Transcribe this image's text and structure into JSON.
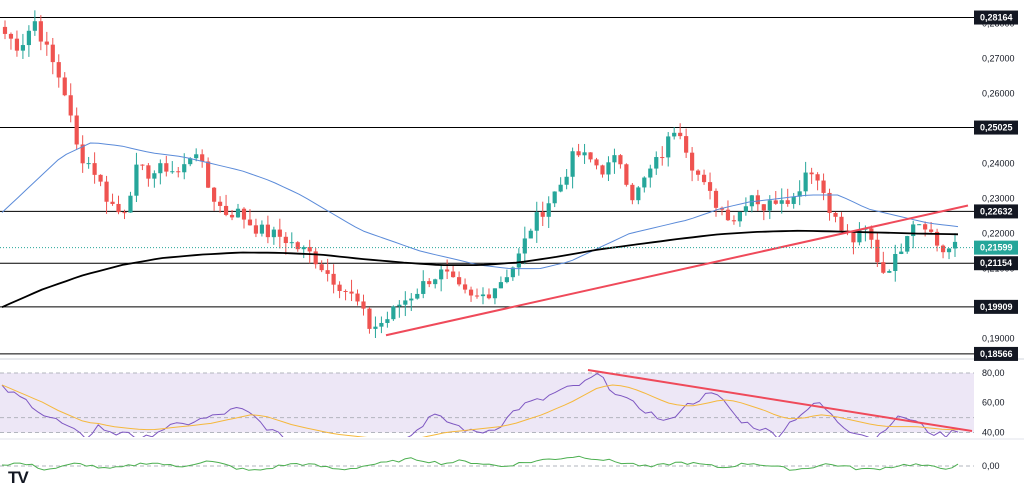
{
  "brand": {
    "logo_text": "TV"
  },
  "colors": {
    "up": "#26a69a",
    "down": "#ef5350",
    "ma_short": "#5b8bd9",
    "ma_long": "#000000",
    "trendline": "#ef4a5a",
    "hline": "#000000",
    "rsi_line": "#7e57c2",
    "rsi_ma": "#f5b83d",
    "rsi_band": "#ede7f6",
    "osc_line": "#4caf50",
    "last_price": "#26a69a"
  },
  "chart_data": [
    {
      "type": "candlestick",
      "panel": "price",
      "ylim": [
        0.1845,
        0.2855
      ],
      "y_ticks": [
        "0,28000",
        "0,27000",
        "0,26000",
        "0,24000",
        "0,23000",
        "0,22000",
        "0,21000",
        "0,20000",
        "0,19000"
      ],
      "horizontal_levels": [
        "0,28164",
        "0,25025",
        "0,22632",
        "0,21154",
        "0,19909",
        "0,18566"
      ],
      "last_price": "0,21599",
      "close_path": [
        0.277,
        0.273,
        0.281,
        0.271,
        0.262,
        0.243,
        0.239,
        0.23,
        0.225,
        0.238,
        0.237,
        0.239,
        0.237,
        0.245,
        0.232,
        0.226,
        0.226,
        0.222,
        0.22,
        0.219,
        0.216,
        0.214,
        0.209,
        0.205,
        0.201,
        0.193,
        0.195,
        0.2,
        0.203,
        0.207,
        0.209,
        0.204,
        0.201,
        0.203,
        0.207,
        0.212,
        0.222,
        0.228,
        0.234,
        0.243,
        0.241,
        0.238,
        0.242,
        0.23,
        0.237,
        0.243,
        0.252,
        0.24,
        0.232,
        0.227,
        0.224,
        0.232,
        0.227,
        0.231,
        0.23,
        0.24,
        0.232,
        0.222,
        0.218,
        0.221,
        0.209,
        0.213,
        0.224,
        0.223,
        0.215,
        0.216
      ],
      "moving_average_short": [
        0.226,
        0.234,
        0.242,
        0.246,
        0.245,
        0.243,
        0.242,
        0.24,
        0.238,
        0.235,
        0.231,
        0.226,
        0.221,
        0.218,
        0.215,
        0.213,
        0.211,
        0.21,
        0.21,
        0.212,
        0.216,
        0.22,
        0.222,
        0.224,
        0.227,
        0.229,
        0.23,
        0.231,
        0.231,
        0.227,
        0.225,
        0.223,
        0.222
      ],
      "moving_average_long": [
        0.199,
        0.204,
        0.208,
        0.211,
        0.213,
        0.214,
        0.2146,
        0.2145,
        0.214,
        0.2128,
        0.2118,
        0.211,
        0.211,
        0.2118,
        0.2135,
        0.2155,
        0.217,
        0.2185,
        0.2198,
        0.2205,
        0.2208,
        0.2206,
        0.2203,
        0.22,
        0.2198
      ],
      "trendline": {
        "from": 0.191,
        "to": 0.228
      }
    },
    {
      "type": "line",
      "panel": "RSI",
      "ylim": [
        37,
        86
      ],
      "y_ticks": [
        "80,00",
        "60,00",
        "40,00"
      ],
      "band": [
        40,
        80
      ],
      "midline": 50,
      "series": [
        {
          "role": "rsi",
          "values": [
            70,
            65,
            60,
            52,
            48,
            42,
            36,
            45,
            38,
            42,
            34,
            40,
            44,
            45,
            48,
            50,
            53,
            56,
            52,
            44,
            38,
            36,
            34,
            32,
            35,
            33,
            30,
            28,
            32,
            35,
            42,
            52,
            48,
            44,
            40,
            41,
            45,
            55,
            60,
            62,
            67,
            70,
            73,
            79,
            69,
            62,
            57,
            52,
            46,
            56,
            61,
            66,
            63,
            50,
            45,
            42,
            38,
            48,
            55,
            60,
            50,
            42,
            40,
            35,
            46,
            51,
            47,
            40,
            38,
            42
          ]
        },
        {
          "role": "signal",
          "values": [
            72,
            68,
            64,
            60,
            55,
            51,
            47,
            46,
            44,
            43,
            42,
            42,
            43,
            44,
            45,
            46,
            48,
            50,
            52,
            51,
            48,
            45,
            43,
            41,
            39,
            38,
            37,
            36,
            35,
            35,
            36,
            38,
            40,
            41,
            42,
            43,
            44,
            46,
            49,
            52,
            56,
            60,
            65,
            70,
            72,
            71,
            68,
            64,
            60,
            58,
            58,
            60,
            62,
            61,
            58,
            55,
            51,
            49,
            50,
            52,
            51,
            49,
            47,
            45,
            44,
            44,
            44,
            43,
            42,
            42
          ]
        }
      ],
      "trendline": {
        "from": 82,
        "to": 41
      }
    },
    {
      "type": "line",
      "panel": "oscillator",
      "y_ticks": [
        "0,00"
      ],
      "zero_line": 0,
      "series": [
        {
          "role": "oscillator",
          "values": [
            0.2,
            0.5,
            0.1,
            -0.6,
            -0.2,
            0.4,
            0.1,
            -0.5,
            -0.3,
            0.2,
            0.6,
            0.3,
            -0.2,
            0.4,
            0.8,
            0.3,
            -0.4,
            -0.8,
            -0.5,
            0.1,
            0.4,
            0.2,
            -0.2,
            -0.6,
            -0.3,
            0.2,
            0.5,
            0.9,
            1.2,
            0.8,
            0.4,
            0.8,
            0.6,
            0.3,
            -0.1,
            0.4,
            0.7,
            1.1,
            1.3,
            1.6,
            1.4,
            1.0,
            0.6,
            0.3,
            -0.2,
            0.2,
            0.6,
            0.4,
            0.1,
            -0.3,
            0.2,
            0.5,
            0.1,
            -0.3,
            -0.6,
            -0.2,
            0.3,
            0.1,
            -0.4,
            -0.6,
            -0.3,
            0.1,
            0.3,
            -0.1,
            -0.4,
            0.1
          ]
        }
      ]
    }
  ]
}
